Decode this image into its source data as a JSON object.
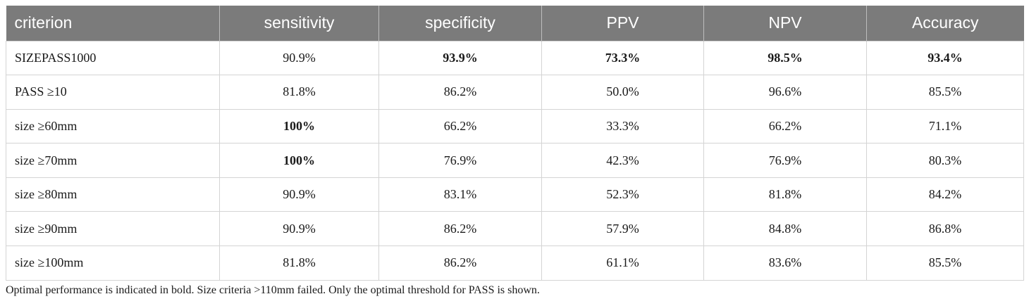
{
  "table": {
    "headers": [
      "criterion",
      "sensitivity",
      "specificity",
      "PPV",
      "NPV",
      "Accuracy"
    ],
    "rows": [
      {
        "cells": [
          "SIZEPASS1000",
          "90.9%",
          "93.9%",
          "73.3%",
          "98.5%",
          "93.4%"
        ],
        "bold": [
          false,
          false,
          true,
          true,
          true,
          true
        ]
      },
      {
        "cells": [
          "PASS ≥10",
          "81.8%",
          "86.2%",
          "50.0%",
          "96.6%",
          "85.5%"
        ],
        "bold": [
          false,
          false,
          false,
          false,
          false,
          false
        ]
      },
      {
        "cells": [
          "size ≥60mm",
          "100%",
          "66.2%",
          "33.3%",
          "66.2%",
          "71.1%"
        ],
        "bold": [
          false,
          true,
          false,
          false,
          false,
          false
        ]
      },
      {
        "cells": [
          "size ≥70mm",
          "100%",
          "76.9%",
          "42.3%",
          "76.9%",
          "80.3%"
        ],
        "bold": [
          false,
          true,
          false,
          false,
          false,
          false
        ]
      },
      {
        "cells": [
          "size ≥80mm",
          "90.9%",
          "83.1%",
          "52.3%",
          "81.8%",
          "84.2%"
        ],
        "bold": [
          false,
          false,
          false,
          false,
          false,
          false
        ]
      },
      {
        "cells": [
          "size ≥90mm",
          "90.9%",
          "86.2%",
          "57.9%",
          "84.8%",
          "86.8%"
        ],
        "bold": [
          false,
          false,
          false,
          false,
          false,
          false
        ]
      },
      {
        "cells": [
          "size ≥100mm",
          "81.8%",
          "86.2%",
          "61.1%",
          "83.6%",
          "85.5%"
        ],
        "bold": [
          false,
          false,
          false,
          false,
          false,
          false
        ]
      }
    ]
  },
  "footnote": "Optimal performance is indicated in bold. Size criteria >110mm failed. Only the optimal threshold for PASS is shown.",
  "colors": {
    "header_background": "#7b7b7b",
    "header_text": "#ffffff",
    "grid_lines": "#d4d4d4"
  }
}
